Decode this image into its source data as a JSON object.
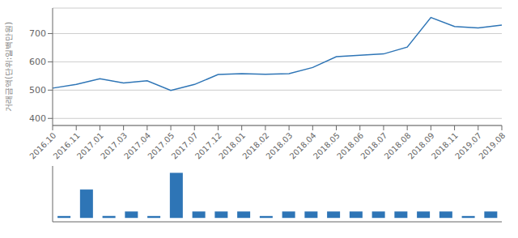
{
  "chart_data": [
    {
      "type": "line",
      "title": "",
      "ylabel": "거래금액(단위:일백만원)",
      "categories": [
        "2016.10",
        "2016.11",
        "2017.01",
        "2017.03",
        "2017.04",
        "2017.05",
        "2017.07",
        "2017.12",
        "2018.01",
        "2018.02",
        "2018.03",
        "2018.04",
        "2018.05",
        "2018.06",
        "2018.07",
        "2018.08",
        "2018.09",
        "2018.11",
        "2019.07",
        "2019.08"
      ],
      "values": [
        507,
        520,
        540,
        525,
        533,
        499,
        520,
        555,
        558,
        556,
        558,
        580,
        618,
        623,
        628,
        652,
        757,
        725,
        720,
        730
      ],
      "color": "#2e75b6",
      "ylim": [
        375,
        790
      ],
      "yticks": [
        400,
        500,
        600,
        700
      ],
      "grid": true
    },
    {
      "type": "bar",
      "categories": [
        "2016.10",
        "2016.11",
        "2017.01",
        "2017.03",
        "2017.04",
        "2017.05",
        "2017.07",
        "2017.12",
        "2018.01",
        "2018.02",
        "2018.03",
        "2018.04",
        "2018.05",
        "2018.06",
        "2018.07",
        "2018.08",
        "2018.09",
        "2018.11",
        "2019.07",
        "2019.08"
      ],
      "values": [
        0.15,
        2.2,
        0.15,
        0.5,
        0.15,
        3.5,
        0.5,
        0.5,
        0.5,
        0.15,
        0.5,
        0.5,
        0.5,
        0.5,
        0.5,
        0.5,
        0.5,
        0.5,
        0.15,
        0.5
      ],
      "color": "#2e75b6",
      "ylim": [
        -0.3,
        4.025
      ],
      "tick_labels": false
    }
  ]
}
